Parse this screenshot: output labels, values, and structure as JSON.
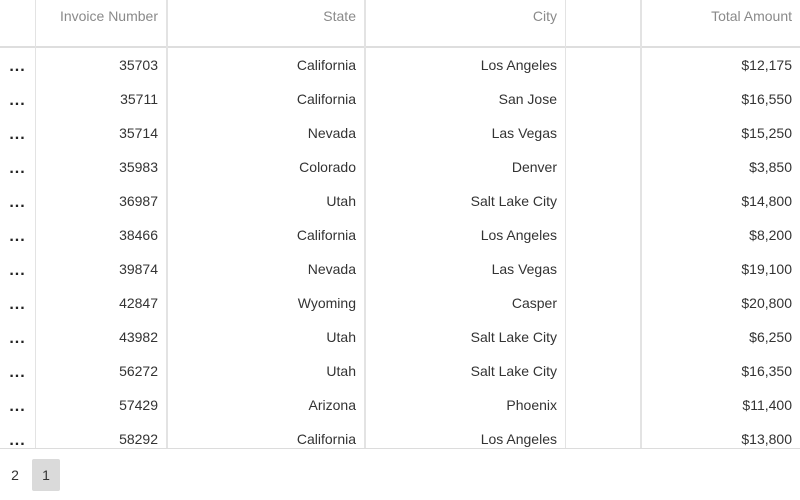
{
  "columns": {
    "menu": "",
    "invoice": "Invoice Number",
    "state": "State",
    "city": "City",
    "blank": "",
    "total": "Total Amount"
  },
  "menu_glyph": "...",
  "rows": [
    {
      "invoice": "35703",
      "state": "California",
      "city": "Los Angeles",
      "blank": "",
      "total": "$12,175"
    },
    {
      "invoice": "35711",
      "state": "California",
      "city": "San Jose",
      "blank": "",
      "total": "$16,550"
    },
    {
      "invoice": "35714",
      "state": "Nevada",
      "city": "Las Vegas",
      "blank": "",
      "total": "$15,250"
    },
    {
      "invoice": "35983",
      "state": "Colorado",
      "city": "Denver",
      "blank": "",
      "total": "$3,850"
    },
    {
      "invoice": "36987",
      "state": "Utah",
      "city": "Salt Lake City",
      "blank": "",
      "total": "$14,800"
    },
    {
      "invoice": "38466",
      "state": "California",
      "city": "Los Angeles",
      "blank": "",
      "total": "$8,200"
    },
    {
      "invoice": "39874",
      "state": "Nevada",
      "city": "Las Vegas",
      "blank": "",
      "total": "$19,100"
    },
    {
      "invoice": "42847",
      "state": "Wyoming",
      "city": "Casper",
      "blank": "",
      "total": "$20,800"
    },
    {
      "invoice": "43982",
      "state": "Utah",
      "city": "Salt Lake City",
      "blank": "",
      "total": "$6,250"
    },
    {
      "invoice": "56272",
      "state": "Utah",
      "city": "Salt Lake City",
      "blank": "",
      "total": "$16,350"
    },
    {
      "invoice": "57429",
      "state": "Arizona",
      "city": "Phoenix",
      "blank": "",
      "total": "$11,400"
    },
    {
      "invoice": "58292",
      "state": "California",
      "city": "Los Angeles",
      "blank": "",
      "total": "$13,800"
    }
  ],
  "pager": {
    "pages": [
      "2",
      "1"
    ],
    "active": "1"
  }
}
